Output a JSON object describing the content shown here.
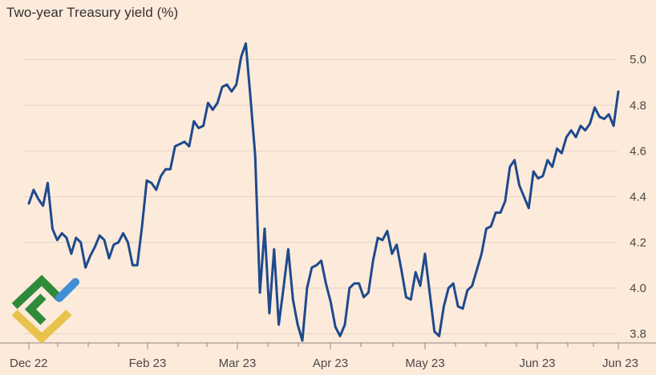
{
  "colors": {
    "background": "#FCEADB",
    "line": "#1E4A8C",
    "grid": "#E5D6C7",
    "axis": "#8F8580",
    "text": "#333030"
  },
  "watermark": {
    "icon": "logo-mark-icon",
    "colors": [
      "#2E8B3A",
      "#E8C24A",
      "#3E8FD6"
    ]
  },
  "chart_data": {
    "type": "line",
    "title": "Two-year Treasury yield (%)",
    "xlabel": "",
    "ylabel": "",
    "ylim": [
      3.76,
      5.12
    ],
    "yticks": [
      3.8,
      4.0,
      4.2,
      4.4,
      4.6,
      4.8,
      5.0
    ],
    "y_axis_position": "right",
    "grid": true,
    "x_tick_labels": [
      "Dec 22",
      "Feb 23",
      "Mar 23",
      "Apr 23",
      "May 23",
      "Jun 23",
      "Jun 23"
    ],
    "series": [
      {
        "values": [
          4.37,
          4.43,
          4.39,
          4.36,
          4.46,
          4.26,
          4.21,
          4.24,
          4.22,
          4.15,
          4.22,
          4.2,
          4.09,
          4.14,
          4.18,
          4.23,
          4.21,
          4.13,
          4.19,
          4.2,
          4.24,
          4.2,
          4.1,
          4.1,
          4.27,
          4.47,
          4.46,
          4.43,
          4.49,
          4.52,
          4.52,
          4.62,
          4.63,
          4.64,
          4.62,
          4.73,
          4.7,
          4.71,
          4.81,
          4.78,
          4.81,
          4.88,
          4.89,
          4.86,
          4.89,
          5.01,
          5.07,
          4.83,
          4.58,
          3.98,
          4.26,
          3.89,
          4.17,
          3.84,
          4.0,
          4.17,
          3.95,
          3.84,
          3.77,
          4.0,
          4.09,
          4.1,
          4.12,
          4.02,
          3.94,
          3.83,
          3.79,
          3.84,
          4.0,
          4.02,
          4.02,
          3.96,
          3.98,
          4.12,
          4.22,
          4.21,
          4.25,
          4.15,
          4.19,
          4.08,
          3.96,
          3.95,
          4.07,
          4.01,
          4.15,
          3.98,
          3.81,
          3.79,
          3.92,
          4.0,
          4.02,
          3.92,
          3.91,
          3.99,
          4.01,
          4.08,
          4.15,
          4.26,
          4.27,
          4.33,
          4.33,
          4.38,
          4.53,
          4.56,
          4.45,
          4.4,
          4.35,
          4.51,
          4.48,
          4.49,
          4.56,
          4.53,
          4.61,
          4.59,
          4.66,
          4.69,
          4.66,
          4.71,
          4.69,
          4.72,
          4.79,
          4.75,
          4.74,
          4.76,
          4.71,
          4.86
        ]
      }
    ]
  }
}
